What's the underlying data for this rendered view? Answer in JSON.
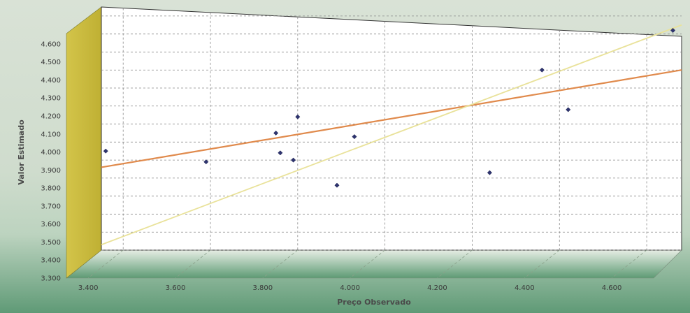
{
  "chart_data": {
    "type": "scatter",
    "title": "",
    "xlabel": "Preço Observado",
    "ylabel": "Valor Estimado",
    "x_ticks": [
      "3.400",
      "3.600",
      "3.800",
      "4.000",
      "4.200",
      "4.400",
      "4.600"
    ],
    "y_ticks": [
      "3.300",
      "3.400",
      "3.500",
      "3.600",
      "3.700",
      "3.800",
      "3.900",
      "4.000",
      "4.100",
      "4.200",
      "4.300",
      "4.400",
      "4.500",
      "4.600"
    ],
    "xlim": [
      3350,
      4680
    ],
    "ylim": [
      3300,
      4650
    ],
    "grid": true,
    "style": "3d-wall",
    "points": [
      {
        "x": 3360,
        "y": 3850
      },
      {
        "x": 3590,
        "y": 3790
      },
      {
        "x": 3750,
        "y": 3950
      },
      {
        "x": 3760,
        "y": 3840
      },
      {
        "x": 3790,
        "y": 3800
      },
      {
        "x": 3800,
        "y": 4040
      },
      {
        "x": 3890,
        "y": 3660
      },
      {
        "x": 3930,
        "y": 3930
      },
      {
        "x": 4240,
        "y": 3730
      },
      {
        "x": 4360,
        "y": 4300
      },
      {
        "x": 4420,
        "y": 4080
      },
      {
        "x": 4660,
        "y": 4520
      }
    ],
    "lines": [
      {
        "kind": "regression",
        "color": "#e08a4c",
        "from": {
          "x": 3350,
          "y": 3760
        },
        "to": {
          "x": 4680,
          "y": 4300
        }
      },
      {
        "kind": "identity",
        "color": "#e9e29a",
        "from": {
          "x": 3350,
          "y": 3330
        },
        "to": {
          "x": 4680,
          "y": 4550
        }
      }
    ],
    "colors": {
      "wall": "#ffffff",
      "side_wall": "#c9bb3c",
      "floor_top": "#e6ede4",
      "floor_bottom": "#5e9b74",
      "marker": "#2e3470",
      "grid": "#8a8a8a"
    }
  }
}
